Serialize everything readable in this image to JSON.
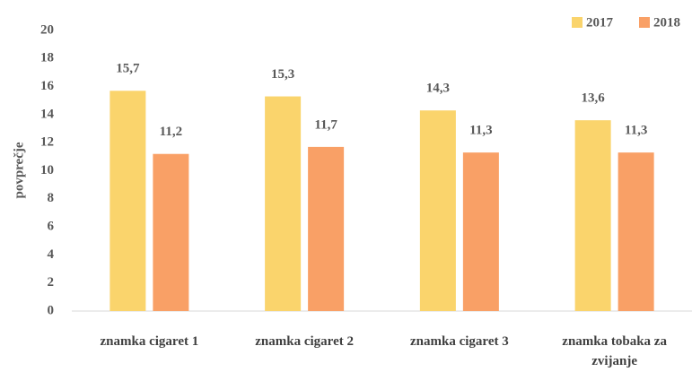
{
  "chart_data": {
    "type": "bar",
    "ylabel": "povprečje",
    "categories": [
      "znamka cigaret 1",
      "znamka cigaret 2",
      "znamka cigaret 3",
      "znamka tobaka za zvijanje"
    ],
    "series": [
      {
        "name": "2017",
        "color": "#fad46c",
        "values": [
          15.7,
          15.3,
          14.3,
          13.6
        ],
        "value_labels": [
          "15,7",
          "15,3",
          "14,3",
          "13,6"
        ]
      },
      {
        "name": "2018",
        "color": "#f9a066",
        "values": [
          11.2,
          11.7,
          11.3,
          11.3
        ],
        "value_labels": [
          "11,2",
          "11,7",
          "11,3",
          "11,3"
        ]
      }
    ],
    "ylim": [
      0,
      20
    ],
    "yticks": [
      0,
      2,
      4,
      6,
      8,
      10,
      12,
      14,
      16,
      18,
      20
    ],
    "legend": "top-right",
    "grid": false
  }
}
